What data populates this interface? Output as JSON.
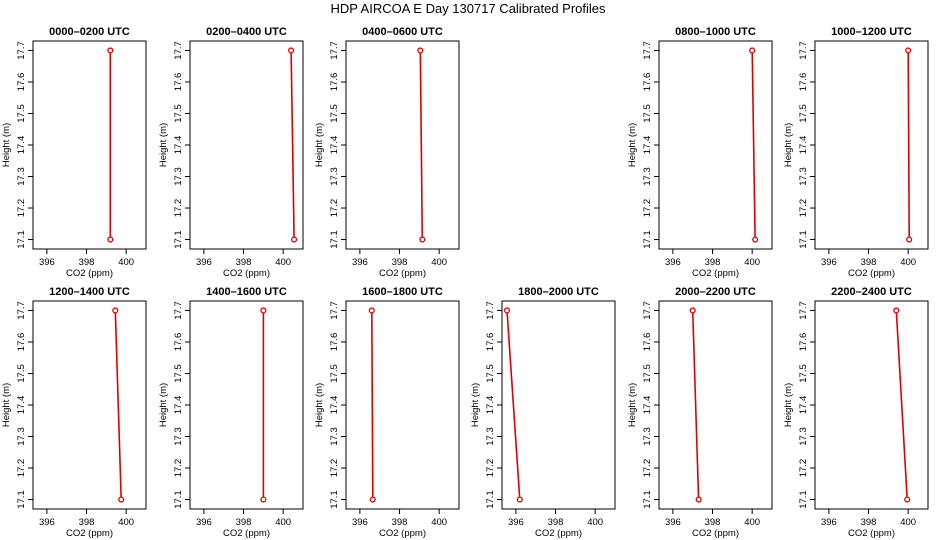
{
  "figure": {
    "title": "HDP AIRCOA E  Day 130717  Calibrated Profiles",
    "colors": {
      "series": "#dd0000",
      "axis": "#000000",
      "background": "#ffffff"
    },
    "rows": 2,
    "cols": 6
  },
  "chart_data": [
    {
      "type": "line",
      "title": "0000–0200 UTC",
      "xlabel": "CO2 (ppm)",
      "ylabel": "Height (m)",
      "xlim": [
        395.3,
        401.0
      ],
      "ylim": [
        17.07,
        17.73
      ],
      "xticks": [
        "396",
        "398",
        "400"
      ],
      "yticks": [
        "17.1",
        "17.2",
        "17.3",
        "17.4",
        "17.5",
        "17.6",
        "17.7"
      ],
      "series": [
        {
          "x": [
            399.2,
            399.2
          ],
          "y": [
            17.1,
            17.7
          ]
        }
      ]
    },
    {
      "type": "line",
      "title": "0200–0400 UTC",
      "xlabel": "CO2 (ppm)",
      "ylabel": "Height (m)",
      "xlim": [
        395.3,
        401.0
      ],
      "ylim": [
        17.07,
        17.73
      ],
      "xticks": [
        "396",
        "398",
        "400"
      ],
      "yticks": [
        "17.1",
        "17.2",
        "17.3",
        "17.4",
        "17.5",
        "17.6",
        "17.7"
      ],
      "series": [
        {
          "x": [
            400.55,
            400.4
          ],
          "y": [
            17.1,
            17.7
          ]
        }
      ]
    },
    {
      "type": "line",
      "title": "0400–0600 UTC",
      "xlabel": "CO2 (ppm)",
      "ylabel": "Height (m)",
      "xlim": [
        395.3,
        401.0
      ],
      "ylim": [
        17.07,
        17.73
      ],
      "xticks": [
        "396",
        "398",
        "400"
      ],
      "yticks": [
        "17.1",
        "17.2",
        "17.3",
        "17.4",
        "17.5",
        "17.6",
        "17.7"
      ],
      "series": [
        {
          "x": [
            399.15,
            399.05
          ],
          "y": [
            17.1,
            17.7
          ]
        }
      ]
    },
    null,
    {
      "type": "line",
      "title": "0800–1000 UTC",
      "xlabel": "CO2 (ppm)",
      "ylabel": "Height (m)",
      "xlim": [
        395.3,
        401.0
      ],
      "ylim": [
        17.07,
        17.73
      ],
      "xticks": [
        "396",
        "398",
        "400"
      ],
      "yticks": [
        "17.1",
        "17.2",
        "17.3",
        "17.4",
        "17.5",
        "17.6",
        "17.7"
      ],
      "series": [
        {
          "x": [
            400.15,
            400.0
          ],
          "y": [
            17.1,
            17.7
          ]
        }
      ]
    },
    {
      "type": "line",
      "title": "1000–1200 UTC",
      "xlabel": "CO2 (ppm)",
      "ylabel": "Height (m)",
      "xlim": [
        395.3,
        401.0
      ],
      "ylim": [
        17.07,
        17.73
      ],
      "xticks": [
        "396",
        "398",
        "400"
      ],
      "yticks": [
        "17.1",
        "17.2",
        "17.3",
        "17.4",
        "17.5",
        "17.6",
        "17.7"
      ],
      "series": [
        {
          "x": [
            400.05,
            400.0
          ],
          "y": [
            17.1,
            17.7
          ]
        }
      ]
    },
    {
      "type": "line",
      "title": "1200–1400 UTC",
      "xlabel": "CO2 (ppm)",
      "ylabel": "Height (m)",
      "xlim": [
        395.3,
        401.0
      ],
      "ylim": [
        17.07,
        17.73
      ],
      "xticks": [
        "396",
        "398",
        "400"
      ],
      "yticks": [
        "17.1",
        "17.2",
        "17.3",
        "17.4",
        "17.5",
        "17.6",
        "17.7"
      ],
      "series": [
        {
          "x": [
            399.75,
            399.45
          ],
          "y": [
            17.1,
            17.7
          ]
        }
      ]
    },
    {
      "type": "line",
      "title": "1400–1600 UTC",
      "xlabel": "CO2 (ppm)",
      "ylabel": "Height (m)",
      "xlim": [
        395.3,
        401.0
      ],
      "ylim": [
        17.07,
        17.73
      ],
      "xticks": [
        "396",
        "398",
        "400"
      ],
      "yticks": [
        "17.1",
        "17.2",
        "17.3",
        "17.4",
        "17.5",
        "17.6",
        "17.7"
      ],
      "series": [
        {
          "x": [
            399.0,
            399.0
          ],
          "y": [
            17.1,
            17.7
          ]
        }
      ]
    },
    {
      "type": "line",
      "title": "1600–1800 UTC",
      "xlabel": "CO2 (ppm)",
      "ylabel": "Height (m)",
      "xlim": [
        395.3,
        401.0
      ],
      "ylim": [
        17.07,
        17.73
      ],
      "xticks": [
        "396",
        "398",
        "400"
      ],
      "yticks": [
        "17.1",
        "17.2",
        "17.3",
        "17.4",
        "17.5",
        "17.6",
        "17.7"
      ],
      "series": [
        {
          "x": [
            396.65,
            396.6
          ],
          "y": [
            17.1,
            17.7
          ]
        }
      ]
    },
    {
      "type": "line",
      "title": "1800–2000 UTC",
      "xlabel": "CO2 (ppm)",
      "ylabel": "Height (m)",
      "xlim": [
        395.3,
        401.0
      ],
      "ylim": [
        17.07,
        17.73
      ],
      "xticks": [
        "396",
        "398",
        "400"
      ],
      "yticks": [
        "17.1",
        "17.2",
        "17.3",
        "17.4",
        "17.5",
        "17.6",
        "17.7"
      ],
      "series": [
        {
          "x": [
            396.2,
            395.55
          ],
          "y": [
            17.1,
            17.7
          ]
        }
      ]
    },
    {
      "type": "line",
      "title": "2000–2200 UTC",
      "xlabel": "CO2 (ppm)",
      "ylabel": "Height (m)",
      "xlim": [
        395.3,
        401.0
      ],
      "ylim": [
        17.07,
        17.73
      ],
      "xticks": [
        "396",
        "398",
        "400"
      ],
      "yticks": [
        "17.1",
        "17.2",
        "17.3",
        "17.4",
        "17.5",
        "17.6",
        "17.7"
      ],
      "series": [
        {
          "x": [
            397.3,
            397.0
          ],
          "y": [
            17.1,
            17.7
          ]
        }
      ]
    },
    {
      "type": "line",
      "title": "2200–2400 UTC",
      "xlabel": "CO2 (ppm)",
      "ylabel": "Height (m)",
      "xlim": [
        395.3,
        401.0
      ],
      "ylim": [
        17.07,
        17.73
      ],
      "xticks": [
        "396",
        "398",
        "400"
      ],
      "yticks": [
        "17.1",
        "17.2",
        "17.3",
        "17.4",
        "17.5",
        "17.6",
        "17.7"
      ],
      "series": [
        {
          "x": [
            399.95,
            399.4
          ],
          "y": [
            17.1,
            17.7
          ]
        }
      ]
    }
  ]
}
